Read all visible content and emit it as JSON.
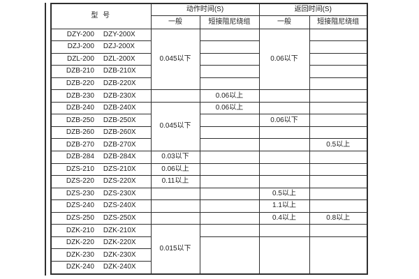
{
  "page": {
    "background_color": "#ffffff",
    "border_color": "#2e2e2e",
    "text_color": "#1b1b1b"
  },
  "table": {
    "header": {
      "model_label": "型  号",
      "action_time_label": "动作时间(S)",
      "return_time_label": "返回时间(S)",
      "general_label": "一般",
      "damping_label": "短接阻尼绕组"
    },
    "columns": [
      "model",
      "action_general",
      "action_damping",
      "return_general",
      "return_damping"
    ],
    "rows": [
      {
        "models": [
          "DZY-200",
          "DZY-200X"
        ],
        "cells": [
          {
            "text": "0.045以下",
            "rowspan": 5
          },
          {
            "text": ""
          },
          {
            "text": "0.06以下",
            "rowspan": 5
          },
          {
            "text": ""
          }
        ]
      },
      {
        "models": [
          "DZJ-200",
          "DZJ-200X"
        ],
        "cells": [
          null,
          {
            "text": ""
          },
          null,
          {
            "text": ""
          }
        ]
      },
      {
        "models": [
          "DZL-200",
          "DZL-200X"
        ],
        "cells": [
          null,
          {
            "text": ""
          },
          null,
          {
            "text": ""
          }
        ]
      },
      {
        "models": [
          "DZB-210",
          "DZB-210X"
        ],
        "cells": [
          null,
          {
            "text": ""
          },
          null,
          {
            "text": ""
          }
        ]
      },
      {
        "models": [
          "DZB-220",
          "DZB-220X"
        ],
        "cells": [
          null,
          {
            "text": ""
          },
          null,
          {
            "text": ""
          }
        ]
      },
      {
        "models": [
          "DZB-230",
          "DZB-230X"
        ],
        "cells": [
          {
            "text": ""
          },
          {
            "text": "0.06以上"
          },
          {
            "text": ""
          },
          {
            "text": ""
          }
        ]
      },
      {
        "models": [
          "DZB-240",
          "DZB-240X"
        ],
        "cells": [
          {
            "text": "0.045以下",
            "rowspan": 4
          },
          {
            "text": "0.06以上"
          },
          {
            "text": ""
          },
          {
            "text": ""
          }
        ]
      },
      {
        "models": [
          "DZB-250",
          "DZB-250X"
        ],
        "cells": [
          null,
          {
            "text": ""
          },
          {
            "text": "0.06以下"
          },
          {
            "text": ""
          }
        ]
      },
      {
        "models": [
          "DZB-260",
          "DZB-260X"
        ],
        "cells": [
          null,
          {
            "text": ""
          },
          {
            "text": ""
          },
          {
            "text": ""
          }
        ]
      },
      {
        "models": [
          "DZB-270",
          "DZB-270X"
        ],
        "cells": [
          null,
          {
            "text": ""
          },
          {
            "text": ""
          },
          {
            "text": "0.5以上"
          }
        ]
      },
      {
        "models": [
          "DZB-284",
          "DZB-284X"
        ],
        "cells": [
          {
            "text": "0.03以下"
          },
          {
            "text": ""
          },
          {
            "text": ""
          },
          {
            "text": ""
          }
        ]
      },
      {
        "models": [
          "DZS-210",
          "DZS-210X"
        ],
        "cells": [
          {
            "text": "0.06以上"
          },
          {
            "text": ""
          },
          {
            "text": ""
          },
          {
            "text": ""
          }
        ]
      },
      {
        "models": [
          "DZS-220",
          "DZS-220X"
        ],
        "cells": [
          {
            "text": "0.11以上"
          },
          {
            "text": ""
          },
          {
            "text": ""
          },
          {
            "text": ""
          }
        ]
      },
      {
        "models": [
          "DZS-230",
          "DZS-230X"
        ],
        "cells": [
          {
            "text": ""
          },
          {
            "text": ""
          },
          {
            "text": "0.5以上"
          },
          {
            "text": ""
          }
        ]
      },
      {
        "models": [
          "DZS-240",
          "DZS-240X"
        ],
        "cells": [
          {
            "text": ""
          },
          {
            "text": ""
          },
          {
            "text": "1.1以上"
          },
          {
            "text": ""
          }
        ]
      },
      {
        "models": [
          "DZS-250",
          "DZS-250X"
        ],
        "cells": [
          {
            "text": ""
          },
          {
            "text": ""
          },
          {
            "text": "0.4以上"
          },
          {
            "text": "0.8以上"
          }
        ]
      },
      {
        "models": [
          "DZK-210",
          "DZK-210X"
        ],
        "cells": [
          {
            "text": "0.015以下",
            "rowspan": 4
          },
          {
            "text": ""
          },
          {
            "text": ""
          },
          {
            "text": ""
          }
        ]
      },
      {
        "models": [
          "DZK-220",
          "DZK-220X"
        ],
        "cells": [
          null,
          {
            "text": "",
            "rowspan": 3
          },
          {
            "text": "",
            "rowspan": 3
          },
          {
            "text": "",
            "rowspan": 3
          }
        ]
      },
      {
        "models": [
          "DZK-230",
          "DZK-230X"
        ],
        "cells": [
          null,
          null,
          null,
          null
        ]
      },
      {
        "models": [
          "DZK-240",
          "DZK-240X"
        ],
        "cells": [
          null,
          null,
          null,
          null
        ]
      }
    ]
  }
}
